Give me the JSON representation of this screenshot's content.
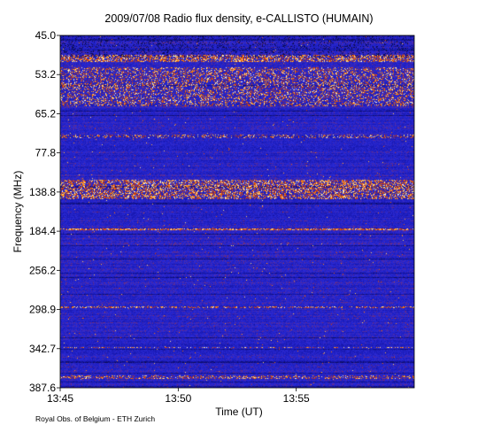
{
  "chart_data": {
    "type": "heatmap",
    "title": "2009/07/08  Radio flux density, e-CALLISTO (HUMAIN)",
    "xlabel": "Time (UT)",
    "ylabel": "Frequency (MHz)",
    "x_ticks": [
      "13:45",
      "13:50",
      "13:55"
    ],
    "y_ticks": [
      "45.0",
      "53.2",
      "65.2",
      "77.8",
      "138.8",
      "184.4",
      "256.2",
      "298.9",
      "342.7",
      "387.6"
    ],
    "x_range": [
      "13:45",
      "14:00"
    ],
    "y_range": [
      45.0,
      387.6
    ],
    "colormap": [
      "#0a0a3a",
      "#1515a8",
      "#2a2ad8",
      "#c03010",
      "#ff7a00",
      "#ffd060",
      "#ffffff"
    ],
    "bright_bands_mhz": [
      50,
      58,
      138.8,
      184.4,
      298.9,
      342.7,
      387.6
    ]
  },
  "credit": "Royal Obs. of Belgium - ETH Zurich"
}
